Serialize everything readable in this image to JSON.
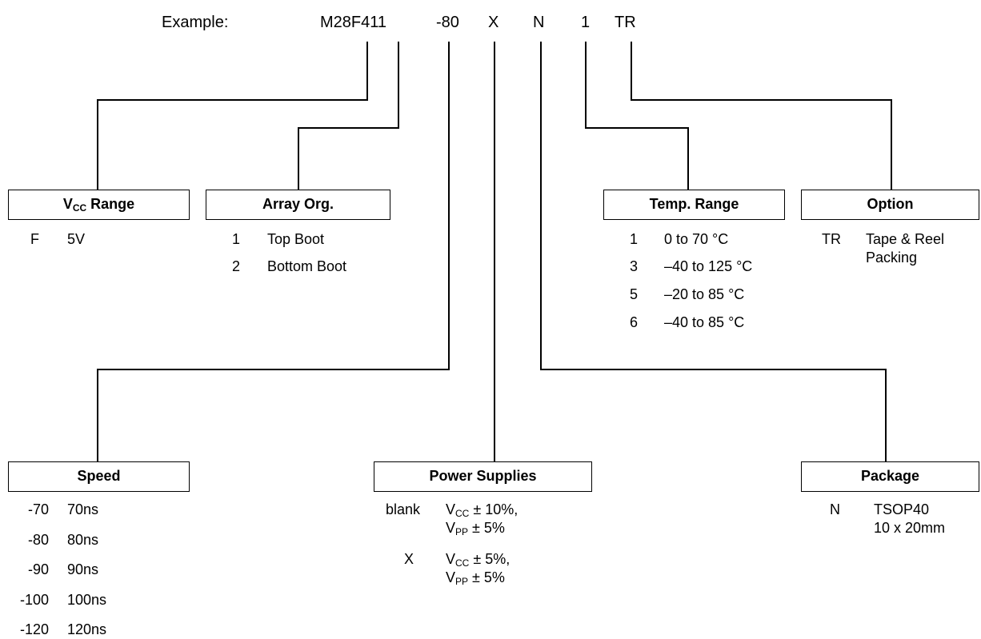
{
  "example": {
    "label": "Example:",
    "part": "M28F411",
    "speed": "-80",
    "supply": "X",
    "package": "N",
    "temp": "1",
    "option": "TR"
  },
  "vcc_range": {
    "title_main": "V",
    "title_sub": "CC",
    "title_rest": " Range",
    "items": [
      {
        "code": "F",
        "desc": "5V"
      }
    ]
  },
  "array_org": {
    "title": "Array Org.",
    "items": [
      {
        "code": "1",
        "desc": "Top Boot"
      },
      {
        "code": "2",
        "desc": "Bottom Boot"
      }
    ]
  },
  "temp_range": {
    "title": "Temp. Range",
    "items": [
      {
        "code": "1",
        "desc": "0 to 70 °C"
      },
      {
        "code": "3",
        "desc": "–40 to 125 °C"
      },
      {
        "code": "5",
        "desc": "–20 to 85 °C"
      },
      {
        "code": "6",
        "desc": "–40 to 85 °C"
      }
    ]
  },
  "option": {
    "title": "Option",
    "items": [
      {
        "code": "TR",
        "desc_line1": "Tape & Reel",
        "desc_line2": "Packing"
      }
    ]
  },
  "speed": {
    "title": "Speed",
    "items": [
      {
        "code": "-70",
        "desc": "70ns"
      },
      {
        "code": "-80",
        "desc": "80ns"
      },
      {
        "code": "-90",
        "desc": "90ns"
      },
      {
        "code": "-100",
        "desc": "100ns"
      },
      {
        "code": "-120",
        "desc": "120ns"
      }
    ]
  },
  "power_supplies": {
    "title": "Power Supplies",
    "items": [
      {
        "code": "blank",
        "l1_v": "V",
        "l1_sub": "CC",
        "l1_rest": " ± 10%,",
        "l2_v": "V",
        "l2_sub": "PP",
        "l2_rest": " ± 5%"
      },
      {
        "code": "X",
        "l1_v": "V",
        "l1_sub": "CC",
        "l1_rest": " ± 5%,",
        "l2_v": "V",
        "l2_sub": "PP",
        "l2_rest": " ± 5%"
      }
    ]
  },
  "package": {
    "title": "Package",
    "items": [
      {
        "code": "N",
        "desc_line1": "TSOP40",
        "desc_line2": "10 x 20mm"
      }
    ]
  }
}
